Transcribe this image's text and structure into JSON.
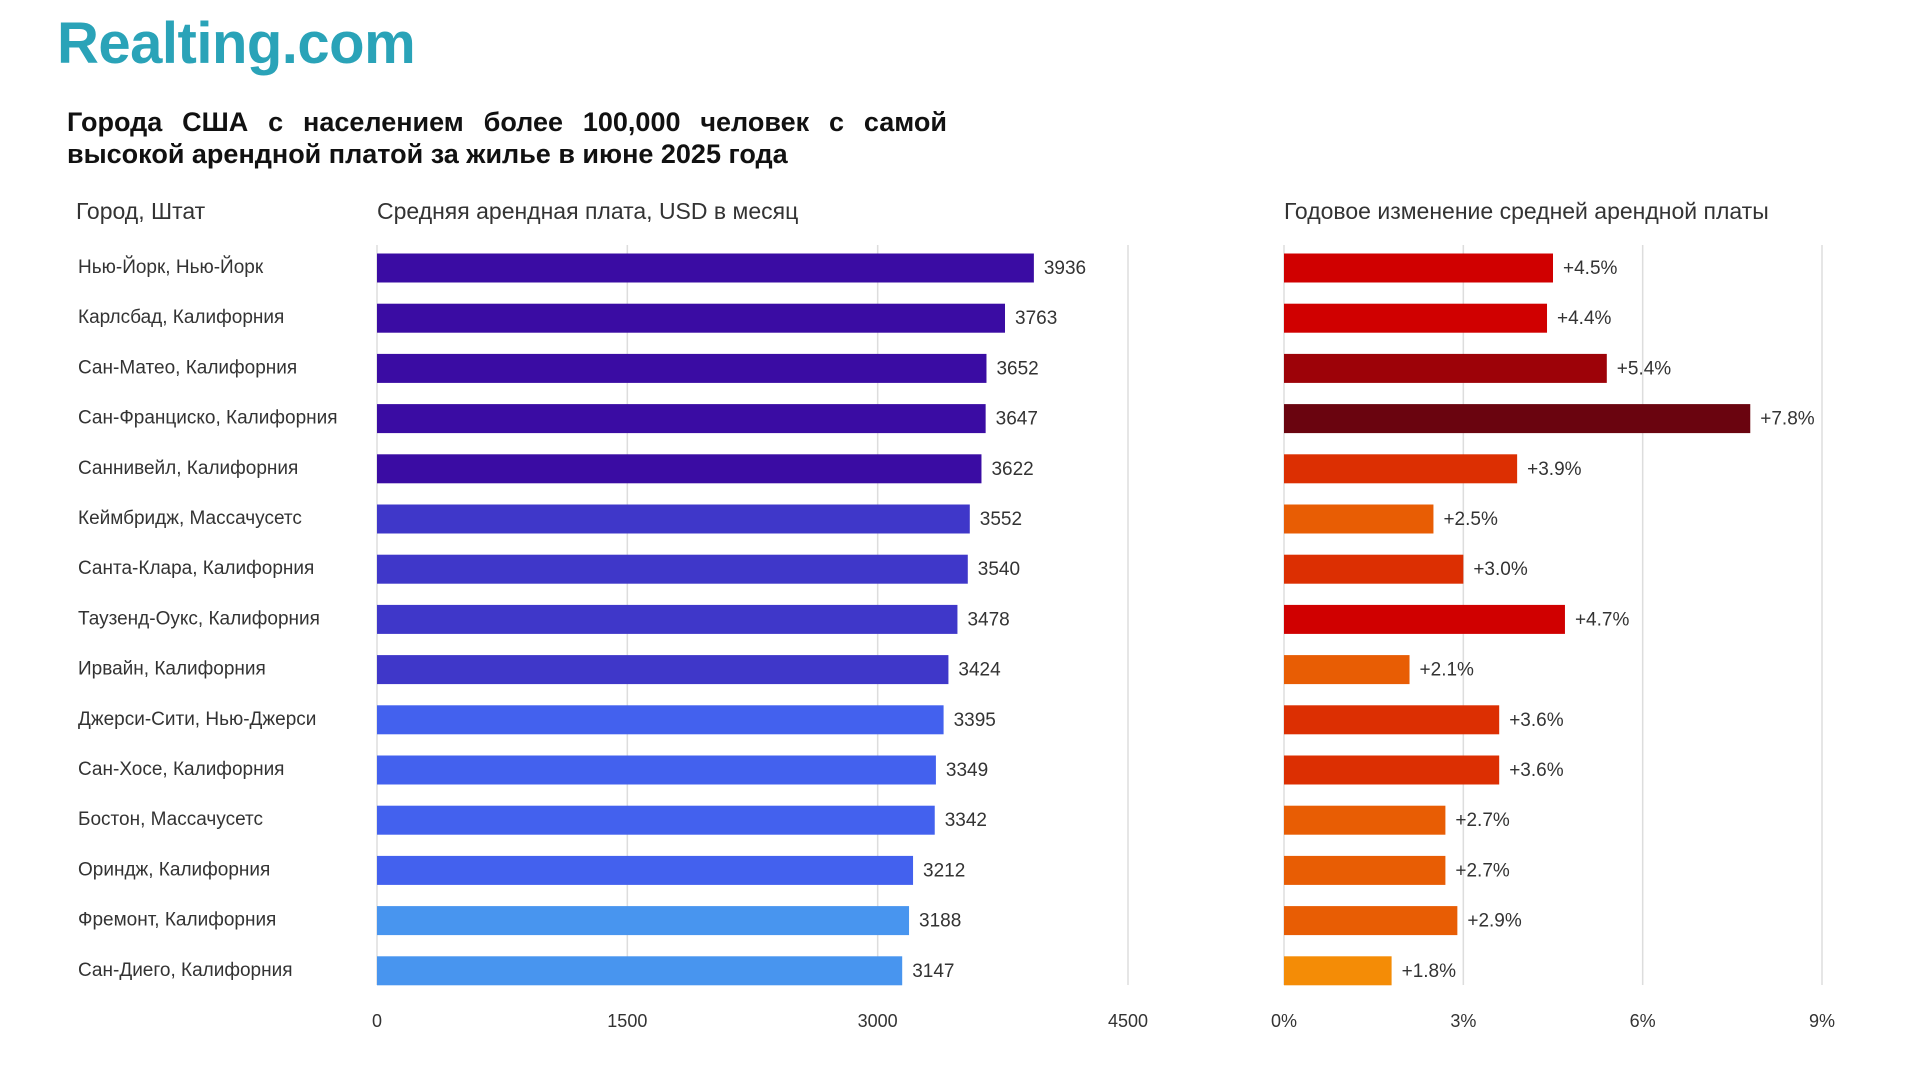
{
  "logo": "Realting.com",
  "title": "Города США с населением более 100,000 человек с самой высокой арендной платой за жилье в июне 2025 года",
  "headers": {
    "city": "Город, Штат",
    "rent": "Средняя арендная плата, USD в месяц",
    "change": "Годовое изменение средней арендной платы"
  },
  "chart_data": [
    {
      "type": "bar",
      "orientation": "horizontal",
      "title": "Средняя арендная плата, USD в месяц",
      "categories": [
        "Нью-Йорк, Нью-Йорк",
        "Карлсбад, Калифорния",
        "Сан-Матео, Калифорния",
        "Сан-Франциско, Калифорния",
        "Саннивейл, Калифорния",
        "Кеймбридж, Массачусетс",
        "Санта-Клара, Калифорния",
        "Таузенд-Оукс, Калифорния",
        "Ирвайн, Калифорния",
        "Джерси-Сити, Нью-Джерси",
        "Сан-Хосе, Калифорния",
        "Бостон, Массачусетс",
        "Ориндж, Калифорния",
        "Фремонт, Калифорния",
        "Сан-Диего, Калифорния"
      ],
      "values": [
        3936,
        3763,
        3652,
        3647,
        3622,
        3552,
        3540,
        3478,
        3424,
        3395,
        3349,
        3342,
        3212,
        3188,
        3147
      ],
      "value_labels": [
        "3936",
        "3763",
        "3652",
        "3647",
        "3622",
        "3552",
        "3540",
        "3478",
        "3424",
        "3395",
        "3349",
        "3342",
        "3212",
        "3188",
        "3147"
      ],
      "colors": [
        "#3a0ca3",
        "#3a0ca3",
        "#3a0ca3",
        "#3a0ca3",
        "#3a0ca3",
        "#3f37c9",
        "#3f37c9",
        "#3f37c9",
        "#3f37c9",
        "#4361ee",
        "#4361ee",
        "#4361ee",
        "#4361ee",
        "#4895ef",
        "#4895ef"
      ],
      "xlim": [
        0,
        4500
      ],
      "ticks": [
        0,
        1500,
        3000,
        4500
      ],
      "tick_labels": [
        "0",
        "1500",
        "3000",
        "4500"
      ],
      "grid": true
    },
    {
      "type": "bar",
      "orientation": "horizontal",
      "title": "Годовое изменение средней арендной платы",
      "categories": [
        "Нью-Йорк, Нью-Йорк",
        "Карлсбад, Калифорния",
        "Сан-Матео, Калифорния",
        "Сан-Франциско, Калифорния",
        "Саннивейл, Калифорния",
        "Кеймбридж, Массачусетс",
        "Санта-Клара, Калифорния",
        "Таузенд-Оукс, Калифорния",
        "Ирвайн, Калифорния",
        "Джерси-Сити, Нью-Джерси",
        "Сан-Хосе, Калифорния",
        "Бостон, Массачусетс",
        "Ориндж, Калифорния",
        "Фремонт, Калифорния",
        "Сан-Диего, Калифорния"
      ],
      "values": [
        4.5,
        4.4,
        5.4,
        7.8,
        3.9,
        2.5,
        3.0,
        4.7,
        2.1,
        3.6,
        3.6,
        2.7,
        2.7,
        2.9,
        1.8
      ],
      "value_labels": [
        "+4.5%",
        "+4.4%",
        "+5.4%",
        "+7.8%",
        "+3.9%",
        "+2.5%",
        "+3.0%",
        "+4.7%",
        "+2.1%",
        "+3.6%",
        "+3.6%",
        "+2.7%",
        "+2.7%",
        "+2.9%",
        "+1.8%"
      ],
      "colors": [
        "#d00000",
        "#d00000",
        "#9d0208",
        "#6a040f",
        "#dc2f02",
        "#e85d04",
        "#dc2f02",
        "#d00000",
        "#e85d04",
        "#dc2f02",
        "#dc2f02",
        "#e85d04",
        "#e85d04",
        "#e85d04",
        "#f48c06"
      ],
      "xlim": [
        0,
        9
      ],
      "ticks": [
        0,
        3,
        6,
        9
      ],
      "tick_labels": [
        "0%",
        "3%",
        "6%",
        "9%"
      ],
      "grid": true
    }
  ]
}
